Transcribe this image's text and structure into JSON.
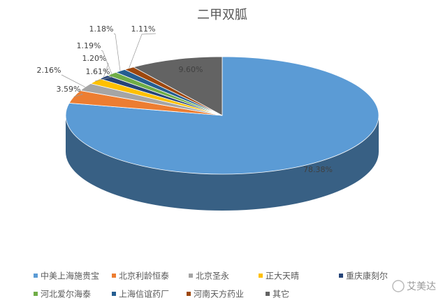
{
  "chart_data": {
    "type": "pie",
    "title": "二甲双胍",
    "categories": [
      "中美上海施贵宝",
      "北京利龄恒泰",
      "北京圣永",
      "正大天晴",
      "重庆康刻尔",
      "河北爱尔海泰",
      "上海信谊药厂",
      "河南天方药业",
      "其它"
    ],
    "values": [
      78.38,
      3.59,
      2.16,
      1.61,
      1.2,
      1.19,
      1.18,
      1.11,
      9.6
    ],
    "value_labels": [
      "78.38%",
      "3.59%",
      "2.16%",
      "1.61%",
      "1.20%",
      "1.19%",
      "1.18%",
      "1.11%",
      "9.60%"
    ],
    "colors": [
      "#5b9bd5",
      "#ed7d31",
      "#a5a5a5",
      "#ffc000",
      "#264478",
      "#70ad47",
      "#255e91",
      "#9e480e",
      "#636363"
    ],
    "legend": "bottom"
  },
  "watermark": "艾美达"
}
